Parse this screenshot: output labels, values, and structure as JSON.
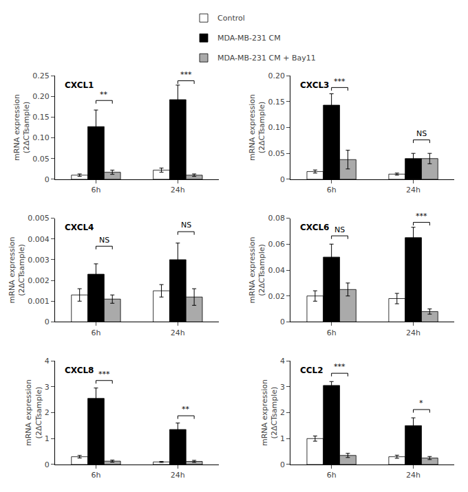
{
  "chart_data": [
    {
      "type": "bar",
      "title": "CXCL1",
      "ylabel": "mRNA expression\n(2ΔCTsample)",
      "categories": [
        "6h",
        "24h"
      ],
      "series": [
        {
          "name": "Control",
          "color": "white",
          "values": [
            0.01,
            0.022
          ],
          "errors": [
            0.003,
            0.005
          ]
        },
        {
          "name": "MDA-MB-231 CM",
          "color": "black",
          "values": [
            0.127,
            0.192
          ],
          "errors": [
            0.04,
            0.035
          ]
        },
        {
          "name": "MDA-MB-231 CM + Bay11",
          "color": "#aaaaaa",
          "values": [
            0.017,
            0.01
          ],
          "errors": [
            0.005,
            0.003
          ]
        }
      ],
      "ylim": [
        0,
        0.25
      ],
      "yticks": [
        0,
        0.05,
        {
          "value": 0.1,
          "label": "0.10"
        },
        0.15,
        {
          "value": 0.2,
          "label": "0.20"
        },
        0.25
      ],
      "grid": false,
      "legend": "top",
      "annotations": [
        {
          "text": "**",
          "category": "6h",
          "series": [
            "MDA-MB-231 CM",
            "MDA-MB-231 CM + Bay11"
          ],
          "y": 0.1825
        },
        {
          "text": "***",
          "category": "24h",
          "series": [
            "MDA-MB-231 CM",
            "MDA-MB-231 CM + Bay11"
          ],
          "y": 0.23
        }
      ]
    },
    {
      "type": "bar",
      "title": "CXCL3",
      "ylabel": "mRNA expression\n(2ΔCTsample)",
      "categories": [
        "6h",
        "24h"
      ],
      "series": [
        {
          "name": "Control",
          "color": "white",
          "values": [
            0.015,
            0.01
          ],
          "errors": [
            0.003,
            0.002
          ]
        },
        {
          "name": "MDA-MB-231 CM",
          "color": "black",
          "values": [
            0.143,
            0.04
          ],
          "errors": [
            0.022,
            0.01
          ]
        },
        {
          "name": "MDA-MB-231 CM + Bay11",
          "color": "#aaaaaa",
          "values": [
            0.038,
            0.04
          ],
          "errors": [
            0.018,
            0.01
          ]
        }
      ],
      "ylim": [
        0,
        0.2
      ],
      "yticks": [
        0,
        0.05,
        {
          "value": 0.1,
          "label": "0.10"
        },
        0.15,
        {
          "value": 0.2,
          "label": "0.20"
        }
      ],
      "grid": false,
      "annotations": [
        {
          "text": "***",
          "category": "6h",
          "series": [
            "MDA-MB-231 CM",
            "MDA-MB-231 CM + Bay11"
          ],
          "y": 0.171
        },
        {
          "text": "NS",
          "category": "24h",
          "series": [
            "MDA-MB-231 CM",
            "MDA-MB-231 CM + Bay11"
          ],
          "y": 0.07
        }
      ]
    },
    {
      "type": "bar",
      "title": "CXCL4",
      "ylabel": "mRNA expression\n(2ΔCTsample)",
      "categories": [
        "6h",
        "24h"
      ],
      "series": [
        {
          "name": "Control",
          "color": "white",
          "values": [
            0.0013,
            0.0015
          ],
          "errors": [
            0.0003,
            0.0003
          ]
        },
        {
          "name": "MDA-MB-231 CM",
          "color": "black",
          "values": [
            0.0023,
            0.003
          ],
          "errors": [
            0.0005,
            0.0008
          ]
        },
        {
          "name": "MDA-MB-231 CM + Bay11",
          "color": "#aaaaaa",
          "values": [
            0.0011,
            0.0012
          ],
          "errors": [
            0.0002,
            0.0004
          ]
        }
      ],
      "ylim": [
        0,
        0.005
      ],
      "yticks": [
        0,
        0.001,
        0.002,
        0.003,
        0.004,
        0.005
      ],
      "grid": false,
      "annotations": [
        {
          "text": "NS",
          "category": "6h",
          "series": [
            "MDA-MB-231 CM",
            "MDA-MB-231 CM + Bay11"
          ],
          "y": 0.0035
        },
        {
          "text": "NS",
          "category": "24h",
          "series": [
            "MDA-MB-231 CM",
            "MDA-MB-231 CM + Bay11"
          ],
          "y": 0.0042
        }
      ]
    },
    {
      "type": "bar",
      "title": "CXCL6",
      "ylabel": "mRNA expression\n(2ΔCTsample)",
      "categories": [
        "6h",
        "24h"
      ],
      "series": [
        {
          "name": "Control",
          "color": "white",
          "values": [
            0.02,
            0.018
          ],
          "errors": [
            0.004,
            0.004
          ]
        },
        {
          "name": "MDA-MB-231 CM",
          "color": "black",
          "values": [
            0.05,
            0.065
          ],
          "errors": [
            0.01,
            0.008
          ]
        },
        {
          "name": "MDA-MB-231 CM + Bay11",
          "color": "#aaaaaa",
          "values": [
            0.025,
            0.008
          ],
          "errors": [
            0.005,
            0.002
          ]
        }
      ],
      "ylim": [
        0,
        0.08
      ],
      "yticks": [
        0,
        0.02,
        0.04,
        0.06,
        0.08
      ],
      "grid": false,
      "annotations": [
        {
          "text": "NS",
          "category": "6h",
          "series": [
            "MDA-MB-231 CM",
            "MDA-MB-231 CM + Bay11"
          ],
          "y": 0.064
        },
        {
          "text": "***",
          "category": "24h",
          "series": [
            "MDA-MB-231 CM",
            "MDA-MB-231 CM + Bay11"
          ],
          "y": 0.0744
        }
      ]
    },
    {
      "type": "bar",
      "title": "CXCL8",
      "ylabel": "mRNA expression\n(2ΔCTsample)",
      "categories": [
        "6h",
        "24h"
      ],
      "series": [
        {
          "name": "Control",
          "color": "white",
          "values": [
            0.3,
            0.1
          ],
          "errors": [
            0.05,
            0.02
          ]
        },
        {
          "name": "MDA-MB-231 CM",
          "color": "black",
          "values": [
            2.55,
            1.35
          ],
          "errors": [
            0.4,
            0.25
          ]
        },
        {
          "name": "MDA-MB-231 CM + Bay11",
          "color": "#aaaaaa",
          "values": [
            0.13,
            0.12
          ],
          "errors": [
            0.04,
            0.04
          ]
        }
      ],
      "ylim": [
        0,
        4
      ],
      "yticks": [
        0,
        1,
        2,
        3,
        4
      ],
      "grid": false,
      "annotations": [
        {
          "text": "***",
          "category": "6h",
          "series": [
            "MDA-MB-231 CM",
            "MDA-MB-231 CM + Bay11"
          ],
          "y": 3.12
        },
        {
          "text": "**",
          "category": "24h",
          "series": [
            "MDA-MB-231 CM",
            "MDA-MB-231 CM + Bay11"
          ],
          "y": 1.76
        }
      ]
    },
    {
      "type": "bar",
      "title": "CCL2",
      "ylabel": "mRNA expression\n(2ΔCTsample)",
      "categories": [
        "6h",
        "24h"
      ],
      "series": [
        {
          "name": "Control",
          "color": "white",
          "values": [
            1.0,
            0.3
          ],
          "errors": [
            0.1,
            0.06
          ]
        },
        {
          "name": "MDA-MB-231 CM",
          "color": "black",
          "values": [
            3.05,
            1.5
          ],
          "errors": [
            0.15,
            0.3
          ]
        },
        {
          "name": "MDA-MB-231 CM + Bay11",
          "color": "#aaaaaa",
          "values": [
            0.35,
            0.25
          ],
          "errors": [
            0.08,
            0.06
          ]
        }
      ],
      "ylim": [
        0,
        4
      ],
      "yticks": [
        0,
        1,
        2,
        3,
        4
      ],
      "grid": false,
      "annotations": [
        {
          "text": "***",
          "category": "6h",
          "series": [
            "MDA-MB-231 CM",
            "MDA-MB-231 CM + Bay11"
          ],
          "y": 3.4
        },
        {
          "text": "*",
          "category": "24h",
          "series": [
            "MDA-MB-231 CM",
            "MDA-MB-231 CM + Bay11"
          ],
          "y": 2.0
        }
      ]
    }
  ]
}
